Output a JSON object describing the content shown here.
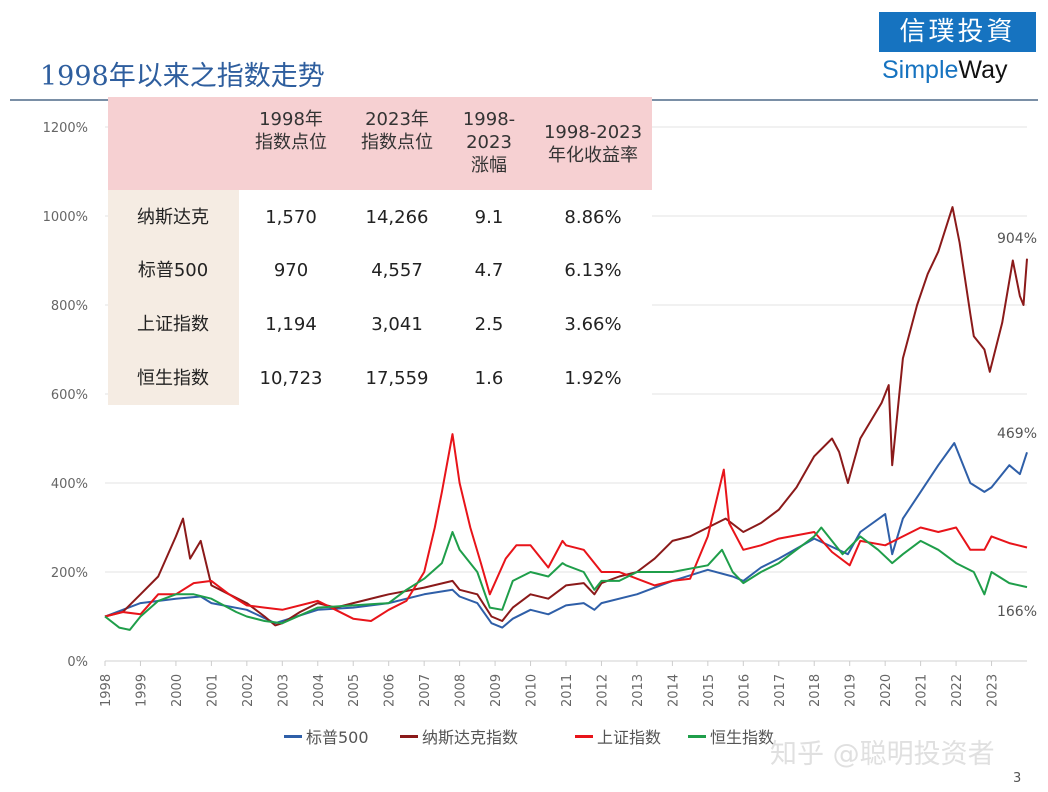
{
  "header": {
    "title": "1998年以来之指数走势",
    "logo_top": "信璞投資",
    "logo_simple": "Simple",
    "logo_way": "Way"
  },
  "table": {
    "headers": [
      [
        "1998年",
        "指数点位"
      ],
      [
        "2023年",
        "指数点位"
      ],
      [
        "1998-",
        "2023",
        "涨幅"
      ],
      [
        "1998-2023",
        "年化收益率"
      ]
    ],
    "rows": [
      {
        "name": "纳斯达克",
        "v1998": "1,570",
        "v2023": "14,266",
        "gain": "9.1",
        "cagr": "8.86%"
      },
      {
        "name": "标普500",
        "v1998": "970",
        "v2023": "4,557",
        "gain": "4.7",
        "cagr": "6.13%"
      },
      {
        "name": "上证指数",
        "v1998": "1,194",
        "v2023": "3,041",
        "gain": "2.5",
        "cagr": "3.66%"
      },
      {
        "name": "恒生指数",
        "v1998": "10,723",
        "v2023": "17,559",
        "gain": "1.6",
        "cagr": "1.92%"
      }
    ]
  },
  "chart_data": {
    "type": "line",
    "ylim": [
      0,
      1200
    ],
    "yticks": [
      "0%",
      "200%",
      "400%",
      "600%",
      "800%",
      "1000%",
      "1200%"
    ],
    "xticks": [
      "1998",
      "1999",
      "2000",
      "2001",
      "2002",
      "2003",
      "2004",
      "2005",
      "2006",
      "2007",
      "2008",
      "2009",
      "2010",
      "2011",
      "2012",
      "2013",
      "2014",
      "2015",
      "2016",
      "2017",
      "2018",
      "2019",
      "2020",
      "2021",
      "2022",
      "2023"
    ],
    "grid": true,
    "legend": "bottom",
    "end_labels": [
      "904%",
      "469%",
      "166%"
    ],
    "series": [
      {
        "name": "标普500",
        "color": "#2F5FA8",
        "points": [
          [
            1998,
            100
          ],
          [
            1999,
            130
          ],
          [
            2000,
            140
          ],
          [
            2000.7,
            145
          ],
          [
            2001,
            130
          ],
          [
            2002,
            115
          ],
          [
            2002.8,
            85
          ],
          [
            2003,
            90
          ],
          [
            2004,
            115
          ],
          [
            2005,
            120
          ],
          [
            2006,
            130
          ],
          [
            2007,
            150
          ],
          [
            2007.8,
            160
          ],
          [
            2008,
            145
          ],
          [
            2008.5,
            130
          ],
          [
            2008.9,
            85
          ],
          [
            2009.2,
            75
          ],
          [
            2009.5,
            95
          ],
          [
            2010,
            115
          ],
          [
            2010.5,
            105
          ],
          [
            2011,
            125
          ],
          [
            2011.5,
            130
          ],
          [
            2011.8,
            115
          ],
          [
            2012,
            130
          ],
          [
            2013,
            150
          ],
          [
            2014,
            180
          ],
          [
            2015,
            205
          ],
          [
            2015.7,
            190
          ],
          [
            2016,
            180
          ],
          [
            2016.5,
            210
          ],
          [
            2017,
            230
          ],
          [
            2018,
            275
          ],
          [
            2018.95,
            240
          ],
          [
            2019.3,
            290
          ],
          [
            2020,
            330
          ],
          [
            2020.2,
            240
          ],
          [
            2020.5,
            320
          ],
          [
            2021,
            380
          ],
          [
            2021.5,
            440
          ],
          [
            2021.95,
            490
          ],
          [
            2022.4,
            400
          ],
          [
            2022.8,
            380
          ],
          [
            2023,
            390
          ],
          [
            2023.5,
            440
          ],
          [
            2023.8,
            420
          ],
          [
            2024,
            469
          ]
        ]
      },
      {
        "name": "纳斯达克指数",
        "color": "#8B1A1A",
        "points": [
          [
            1998,
            100
          ],
          [
            1998.5,
            110
          ],
          [
            1999,
            150
          ],
          [
            1999.5,
            190
          ],
          [
            2000,
            280
          ],
          [
            2000.2,
            320
          ],
          [
            2000.4,
            230
          ],
          [
            2000.7,
            270
          ],
          [
            2001,
            170
          ],
          [
            2001.5,
            150
          ],
          [
            2002,
            130
          ],
          [
            2002.5,
            100
          ],
          [
            2002.8,
            80
          ],
          [
            2003,
            85
          ],
          [
            2003.5,
            110
          ],
          [
            2004,
            130
          ],
          [
            2004.5,
            120
          ],
          [
            2005,
            130
          ],
          [
            2006,
            150
          ],
          [
            2007,
            165
          ],
          [
            2007.8,
            180
          ],
          [
            2008,
            160
          ],
          [
            2008.5,
            150
          ],
          [
            2008.9,
            100
          ],
          [
            2009.2,
            90
          ],
          [
            2009.5,
            120
          ],
          [
            2010,
            150
          ],
          [
            2010.5,
            140
          ],
          [
            2011,
            170
          ],
          [
            2011.5,
            175
          ],
          [
            2011.8,
            150
          ],
          [
            2012,
            175
          ],
          [
            2012.5,
            190
          ],
          [
            2013,
            200
          ],
          [
            2013.5,
            230
          ],
          [
            2014,
            270
          ],
          [
            2014.5,
            280
          ],
          [
            2015,
            300
          ],
          [
            2015.5,
            320
          ],
          [
            2016,
            290
          ],
          [
            2016.5,
            310
          ],
          [
            2017,
            340
          ],
          [
            2017.5,
            390
          ],
          [
            2018,
            460
          ],
          [
            2018.5,
            500
          ],
          [
            2018.7,
            470
          ],
          [
            2018.95,
            400
          ],
          [
            2019.3,
            500
          ],
          [
            2019.9,
            580
          ],
          [
            2020.1,
            620
          ],
          [
            2020.2,
            440
          ],
          [
            2020.5,
            680
          ],
          [
            2020.9,
            800
          ],
          [
            2021.2,
            870
          ],
          [
            2021.5,
            920
          ],
          [
            2021.9,
            1020
          ],
          [
            2022.1,
            940
          ],
          [
            2022.4,
            780
          ],
          [
            2022.5,
            730
          ],
          [
            2022.8,
            700
          ],
          [
            2022.95,
            650
          ],
          [
            2023.3,
            760
          ],
          [
            2023.6,
            900
          ],
          [
            2023.8,
            820
          ],
          [
            2023.9,
            800
          ],
          [
            2024,
            904
          ]
        ]
      },
      {
        "name": "上证指数",
        "color": "#E8141A",
        "points": [
          [
            1998,
            100
          ],
          [
            1998.5,
            110
          ],
          [
            1999,
            105
          ],
          [
            1999.5,
            150
          ],
          [
            2000,
            150
          ],
          [
            2000.5,
            175
          ],
          [
            2001,
            180
          ],
          [
            2001.5,
            150
          ],
          [
            2002,
            125
          ],
          [
            2002.5,
            120
          ],
          [
            2003,
            115
          ],
          [
            2004,
            135
          ],
          [
            2004.5,
            115
          ],
          [
            2005,
            95
          ],
          [
            2005.5,
            90
          ],
          [
            2006,
            115
          ],
          [
            2006.5,
            135
          ],
          [
            2007,
            200
          ],
          [
            2007.3,
            300
          ],
          [
            2007.5,
            380
          ],
          [
            2007.8,
            510
          ],
          [
            2008,
            400
          ],
          [
            2008.3,
            300
          ],
          [
            2008.6,
            220
          ],
          [
            2008.85,
            150
          ],
          [
            2009.3,
            230
          ],
          [
            2009.6,
            260
          ],
          [
            2010,
            260
          ],
          [
            2010.5,
            210
          ],
          [
            2010.9,
            270
          ],
          [
            2011,
            260
          ],
          [
            2011.5,
            250
          ],
          [
            2012,
            200
          ],
          [
            2012.5,
            200
          ],
          [
            2013,
            185
          ],
          [
            2013.5,
            170
          ],
          [
            2014,
            180
          ],
          [
            2014.5,
            185
          ],
          [
            2015,
            280
          ],
          [
            2015.45,
            430
          ],
          [
            2015.6,
            310
          ],
          [
            2016,
            250
          ],
          [
            2016.5,
            260
          ],
          [
            2017,
            275
          ],
          [
            2018,
            290
          ],
          [
            2018.5,
            245
          ],
          [
            2019,
            215
          ],
          [
            2019.3,
            270
          ],
          [
            2020,
            260
          ],
          [
            2020.5,
            280
          ],
          [
            2021,
            300
          ],
          [
            2021.5,
            290
          ],
          [
            2022,
            300
          ],
          [
            2022.4,
            250
          ],
          [
            2022.8,
            250
          ],
          [
            2023,
            280
          ],
          [
            2023.5,
            265
          ],
          [
            2024,
            255
          ]
        ]
      },
      {
        "name": "恒生指数",
        "color": "#1F9E4A",
        "points": [
          [
            1998,
            100
          ],
          [
            1998.4,
            75
          ],
          [
            1998.7,
            70
          ],
          [
            1999,
            100
          ],
          [
            1999.5,
            135
          ],
          [
            2000,
            150
          ],
          [
            2000.5,
            150
          ],
          [
            2001,
            140
          ],
          [
            2001.7,
            110
          ],
          [
            2002,
            100
          ],
          [
            2002.5,
            90
          ],
          [
            2003,
            85
          ],
          [
            2004,
            120
          ],
          [
            2005,
            125
          ],
          [
            2006,
            130
          ],
          [
            2006.5,
            160
          ],
          [
            2007,
            185
          ],
          [
            2007.5,
            220
          ],
          [
            2007.8,
            290
          ],
          [
            2008,
            250
          ],
          [
            2008.5,
            200
          ],
          [
            2008.85,
            120
          ],
          [
            2009.2,
            115
          ],
          [
            2009.5,
            180
          ],
          [
            2010,
            200
          ],
          [
            2010.5,
            190
          ],
          [
            2010.9,
            220
          ],
          [
            2011,
            215
          ],
          [
            2011.5,
            200
          ],
          [
            2011.8,
            160
          ],
          [
            2012,
            180
          ],
          [
            2012.5,
            180
          ],
          [
            2013,
            200
          ],
          [
            2014,
            200
          ],
          [
            2015,
            215
          ],
          [
            2015.4,
            250
          ],
          [
            2015.7,
            200
          ],
          [
            2016,
            175
          ],
          [
            2016.5,
            200
          ],
          [
            2017,
            220
          ],
          [
            2018,
            280
          ],
          [
            2018.2,
            300
          ],
          [
            2018.8,
            240
          ],
          [
            2019.3,
            280
          ],
          [
            2019.8,
            250
          ],
          [
            2020.2,
            220
          ],
          [
            2020.5,
            240
          ],
          [
            2021,
            270
          ],
          [
            2021.5,
            250
          ],
          [
            2022,
            220
          ],
          [
            2022.5,
            200
          ],
          [
            2022.8,
            150
          ],
          [
            2023,
            200
          ],
          [
            2023.5,
            175
          ],
          [
            2024,
            166
          ]
        ]
      }
    ]
  },
  "watermark": "知乎 @聪明投资者",
  "page_number": "3"
}
